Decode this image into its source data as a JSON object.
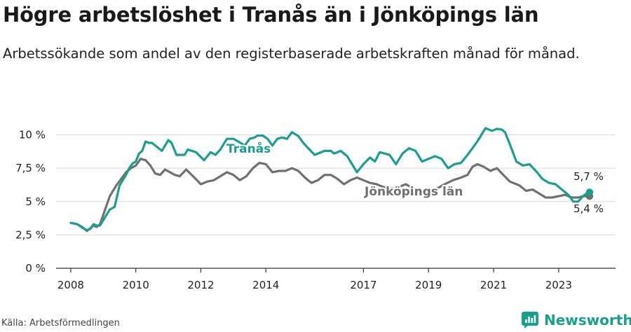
{
  "title": "Högre arbetslöshet i Tranås än i Jönköpings län",
  "subtitle": "Arbetssökande som andel av den registerbaserade arbetskraften månad för månad.",
  "source": "Källa: Arbetsförmedlingen",
  "brand": "Newsworthy",
  "colors": {
    "tranas": "#1a9e91",
    "jonkoping": "#707070",
    "grid": "#d9d9d9",
    "axis": "#333333",
    "brand": "#18a08d"
  },
  "chart_data": {
    "type": "line",
    "title": "Högre arbetslöshet i Tranås än i Jönköpings län",
    "xlabel": "",
    "ylabel": "",
    "ylim": [
      0,
      10.5
    ],
    "xlim": [
      2007.55,
      2024.75
    ],
    "y_ticks": [
      0,
      2.5,
      5,
      7.5,
      10
    ],
    "y_tick_labels": [
      "0 %",
      "2,5 %",
      "5 %",
      "7,5 %",
      "10 %"
    ],
    "x_ticks": [
      2008,
      2010,
      2012,
      2014,
      2017,
      2019,
      2021,
      2023
    ],
    "x_tick_labels": [
      "2008",
      "2010",
      "2012",
      "2014",
      "2017",
      "2019",
      "2021",
      "2023"
    ],
    "grid": true,
    "series": [
      {
        "name": "Tranås",
        "color_key": "tranas",
        "end_label": "5,7 %",
        "points": [
          [
            2008.0,
            3.4
          ],
          [
            2008.2,
            3.3
          ],
          [
            2008.35,
            3.05
          ],
          [
            2008.5,
            2.85
          ],
          [
            2008.6,
            2.95
          ],
          [
            2008.7,
            3.3
          ],
          [
            2008.8,
            3.2
          ],
          [
            2008.9,
            3.2
          ],
          [
            2009.0,
            3.6
          ],
          [
            2009.1,
            4.0
          ],
          [
            2009.2,
            4.4
          ],
          [
            2009.35,
            4.6
          ],
          [
            2009.5,
            6.2
          ],
          [
            2009.6,
            6.6
          ],
          [
            2009.7,
            7.0
          ],
          [
            2009.8,
            7.5
          ],
          [
            2009.9,
            7.85
          ],
          [
            2010.0,
            8.0
          ],
          [
            2010.1,
            8.6
          ],
          [
            2010.2,
            8.8
          ],
          [
            2010.3,
            9.5
          ],
          [
            2010.4,
            9.4
          ],
          [
            2010.5,
            9.4
          ],
          [
            2010.65,
            9.1
          ],
          [
            2010.8,
            8.8
          ],
          [
            2011.0,
            9.6
          ],
          [
            2011.1,
            9.4
          ],
          [
            2011.25,
            8.5
          ],
          [
            2011.5,
            8.5
          ],
          [
            2011.6,
            8.9
          ],
          [
            2011.85,
            8.7
          ],
          [
            2012.1,
            8.1
          ],
          [
            2012.3,
            8.7
          ],
          [
            2012.45,
            8.5
          ],
          [
            2012.6,
            8.9
          ],
          [
            2012.8,
            9.7
          ],
          [
            2013.0,
            9.7
          ],
          [
            2013.15,
            9.5
          ],
          [
            2013.35,
            9.2
          ],
          [
            2013.5,
            9.7
          ],
          [
            2013.65,
            9.8
          ],
          [
            2013.75,
            9.95
          ],
          [
            2013.9,
            9.95
          ],
          [
            2014.05,
            9.7
          ],
          [
            2014.2,
            9.2
          ],
          [
            2014.35,
            9.7
          ],
          [
            2014.5,
            9.8
          ],
          [
            2014.65,
            9.7
          ],
          [
            2014.8,
            10.2
          ],
          [
            2015.0,
            9.9
          ],
          [
            2015.15,
            9.4
          ],
          [
            2015.3,
            9.0
          ],
          [
            2015.5,
            8.5
          ],
          [
            2015.8,
            8.8
          ],
          [
            2016.0,
            8.8
          ],
          [
            2016.1,
            8.6
          ],
          [
            2016.3,
            8.8
          ],
          [
            2016.5,
            8.4
          ],
          [
            2016.8,
            7.2
          ],
          [
            2017.0,
            7.8
          ],
          [
            2017.2,
            8.3
          ],
          [
            2017.35,
            8.0
          ],
          [
            2017.5,
            8.7
          ],
          [
            2017.8,
            8.5
          ],
          [
            2018.0,
            7.8
          ],
          [
            2018.2,
            8.6
          ],
          [
            2018.4,
            9.0
          ],
          [
            2018.6,
            8.8
          ],
          [
            2018.8,
            8.0
          ],
          [
            2019.0,
            8.2
          ],
          [
            2019.2,
            8.4
          ],
          [
            2019.4,
            8.2
          ],
          [
            2019.6,
            7.5
          ],
          [
            2019.8,
            7.8
          ],
          [
            2020.0,
            7.9
          ],
          [
            2020.2,
            8.5
          ],
          [
            2020.35,
            9.0
          ],
          [
            2020.5,
            9.5
          ],
          [
            2020.75,
            10.5
          ],
          [
            2020.95,
            10.3
          ],
          [
            2021.1,
            10.45
          ],
          [
            2021.25,
            10.4
          ],
          [
            2021.35,
            10.2
          ],
          [
            2021.5,
            9.3
          ],
          [
            2021.7,
            8.0
          ],
          [
            2021.9,
            7.7
          ],
          [
            2022.1,
            7.8
          ],
          [
            2022.3,
            7.3
          ],
          [
            2022.5,
            6.7
          ],
          [
            2022.7,
            6.4
          ],
          [
            2022.9,
            6.3
          ],
          [
            2023.1,
            5.9
          ],
          [
            2023.3,
            5.5
          ],
          [
            2023.45,
            5.0
          ],
          [
            2023.6,
            5.0
          ],
          [
            2023.75,
            5.4
          ],
          [
            2023.85,
            5.6
          ],
          [
            2023.95,
            5.7
          ]
        ]
      },
      {
        "name": "Jönköpings län",
        "color_key": "jonkoping",
        "end_label": "5,4 %",
        "points": [
          [
            2008.0,
            3.4
          ],
          [
            2008.2,
            3.3
          ],
          [
            2008.35,
            3.1
          ],
          [
            2008.5,
            2.8
          ],
          [
            2008.6,
            3.0
          ],
          [
            2008.7,
            3.2
          ],
          [
            2008.8,
            3.1
          ],
          [
            2008.9,
            3.3
          ],
          [
            2009.0,
            4.0
          ],
          [
            2009.1,
            4.7
          ],
          [
            2009.2,
            5.4
          ],
          [
            2009.4,
            6.2
          ],
          [
            2009.55,
            6.7
          ],
          [
            2009.7,
            7.2
          ],
          [
            2009.85,
            7.5
          ],
          [
            2010.0,
            7.7
          ],
          [
            2010.15,
            8.2
          ],
          [
            2010.3,
            8.1
          ],
          [
            2010.45,
            7.7
          ],
          [
            2010.6,
            7.1
          ],
          [
            2010.75,
            7.0
          ],
          [
            2010.9,
            7.4
          ],
          [
            2011.05,
            7.2
          ],
          [
            2011.2,
            7.0
          ],
          [
            2011.35,
            6.9
          ],
          [
            2011.55,
            7.4
          ],
          [
            2011.8,
            6.8
          ],
          [
            2012.0,
            6.3
          ],
          [
            2012.2,
            6.5
          ],
          [
            2012.4,
            6.6
          ],
          [
            2012.6,
            6.9
          ],
          [
            2012.8,
            7.2
          ],
          [
            2013.0,
            7.0
          ],
          [
            2013.2,
            6.6
          ],
          [
            2013.4,
            6.9
          ],
          [
            2013.6,
            7.5
          ],
          [
            2013.8,
            7.9
          ],
          [
            2014.0,
            7.8
          ],
          [
            2014.2,
            7.2
          ],
          [
            2014.4,
            7.3
          ],
          [
            2014.6,
            7.3
          ],
          [
            2014.8,
            7.5
          ],
          [
            2015.0,
            7.3
          ],
          [
            2015.2,
            6.8
          ],
          [
            2015.4,
            6.4
          ],
          [
            2015.6,
            6.6
          ],
          [
            2015.8,
            7.0
          ],
          [
            2016.0,
            7.0
          ],
          [
            2016.2,
            6.7
          ],
          [
            2016.4,
            6.3
          ],
          [
            2016.6,
            6.6
          ],
          [
            2016.8,
            6.8
          ],
          [
            2017.0,
            6.6
          ],
          [
            2017.2,
            6.4
          ],
          [
            2017.4,
            6.3
          ],
          [
            2017.6,
            6.1
          ],
          [
            2017.8,
            6.0
          ],
          [
            2018.0,
            6.0
          ],
          [
            2018.3,
            6.3
          ],
          [
            2018.6,
            5.9
          ],
          [
            2018.9,
            5.8
          ],
          [
            2019.2,
            5.9
          ],
          [
            2019.5,
            6.3
          ],
          [
            2019.75,
            6.6
          ],
          [
            2020.0,
            6.8
          ],
          [
            2020.2,
            7.0
          ],
          [
            2020.35,
            7.6
          ],
          [
            2020.5,
            7.8
          ],
          [
            2020.7,
            7.6
          ],
          [
            2020.9,
            7.3
          ],
          [
            2021.1,
            7.5
          ],
          [
            2021.3,
            7.0
          ],
          [
            2021.5,
            6.5
          ],
          [
            2021.8,
            6.2
          ],
          [
            2022.0,
            5.8
          ],
          [
            2022.2,
            5.9
          ],
          [
            2022.4,
            5.6
          ],
          [
            2022.6,
            5.3
          ],
          [
            2022.8,
            5.3
          ],
          [
            2023.0,
            5.4
          ],
          [
            2023.2,
            5.5
          ],
          [
            2023.4,
            5.3
          ],
          [
            2023.6,
            5.3
          ],
          [
            2023.75,
            5.4
          ],
          [
            2023.9,
            5.4
          ],
          [
            2023.95,
            5.4
          ]
        ]
      }
    ]
  }
}
